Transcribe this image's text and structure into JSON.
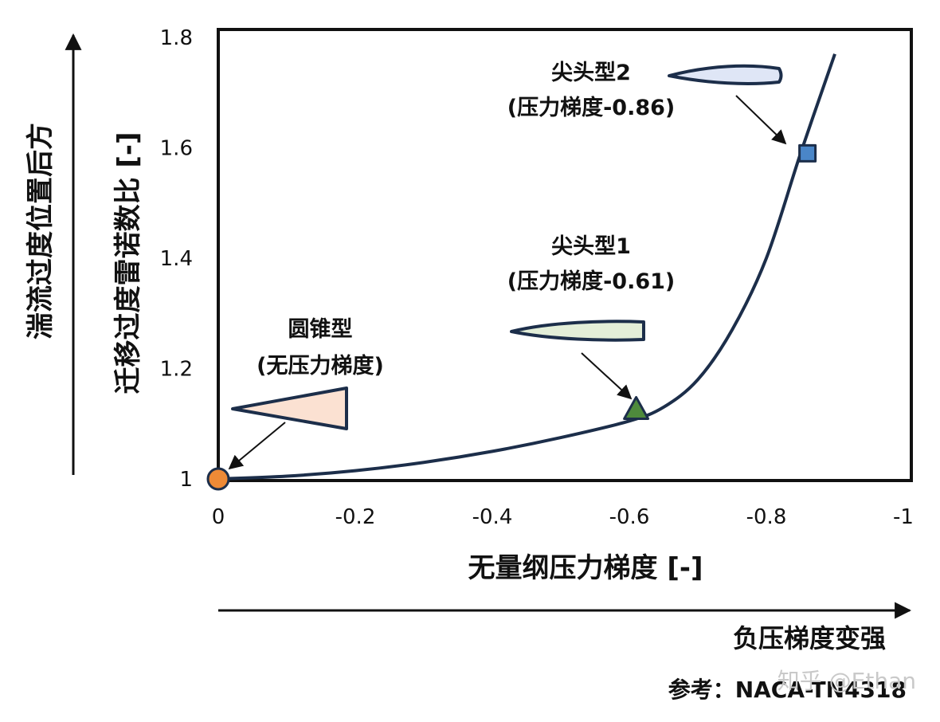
{
  "chart_data": {
    "type": "line",
    "xlabel": "无量纲压力梯度 [-]",
    "ylabel_inner": "迁移过度雷诺数比 [-]",
    "ylabel_outer": "湍流过度位置后方",
    "x_trend_label": "负压梯度变强",
    "xlim": [
      0,
      -1
    ],
    "ylim": [
      1,
      1.8
    ],
    "x_ticks": [
      "0",
      "-0.2",
      "-0.4",
      "-0.6",
      "-0.8",
      "-1"
    ],
    "y_ticks": [
      "1",
      "1.2",
      "1.4",
      "1.6",
      "1.8"
    ],
    "grid": false,
    "series": [
      {
        "x": [
          0,
          -0.1,
          -0.2,
          -0.3,
          -0.4,
          -0.5,
          -0.6,
          -0.65,
          -0.7,
          -0.75,
          -0.8,
          -0.85,
          -0.9
        ],
        "y": [
          1.0,
          1.005,
          1.015,
          1.03,
          1.05,
          1.075,
          1.105,
          1.13,
          1.18,
          1.27,
          1.4,
          1.59,
          1.77
        ],
        "color": "#1c2e4a"
      }
    ],
    "points": [
      {
        "x": 0,
        "y": 1.0,
        "marker": "circle",
        "color": "#ee8a36",
        "label_line1": "圆锥型",
        "label_line2": "(无压力梯度)"
      },
      {
        "x": -0.61,
        "y": 1.125,
        "marker": "triangle",
        "color": "#4e8a3c",
        "label_line1": "尖头型1",
        "label_line2": "(压力梯度-0.61)"
      },
      {
        "x": -0.86,
        "y": 1.59,
        "marker": "square",
        "color": "#4a86c8",
        "label_line1": "尖头型2",
        "label_line2": "(压力梯度-0.86)"
      }
    ],
    "shape_colors": {
      "cone": "#fbe1d2",
      "sharp1": "#e3eed8",
      "sharp2": "#dfe6f6",
      "outline": "#1c2e4a"
    }
  },
  "reference": "参考：NACA-TN4318",
  "watermark": "知乎 @Ethan"
}
